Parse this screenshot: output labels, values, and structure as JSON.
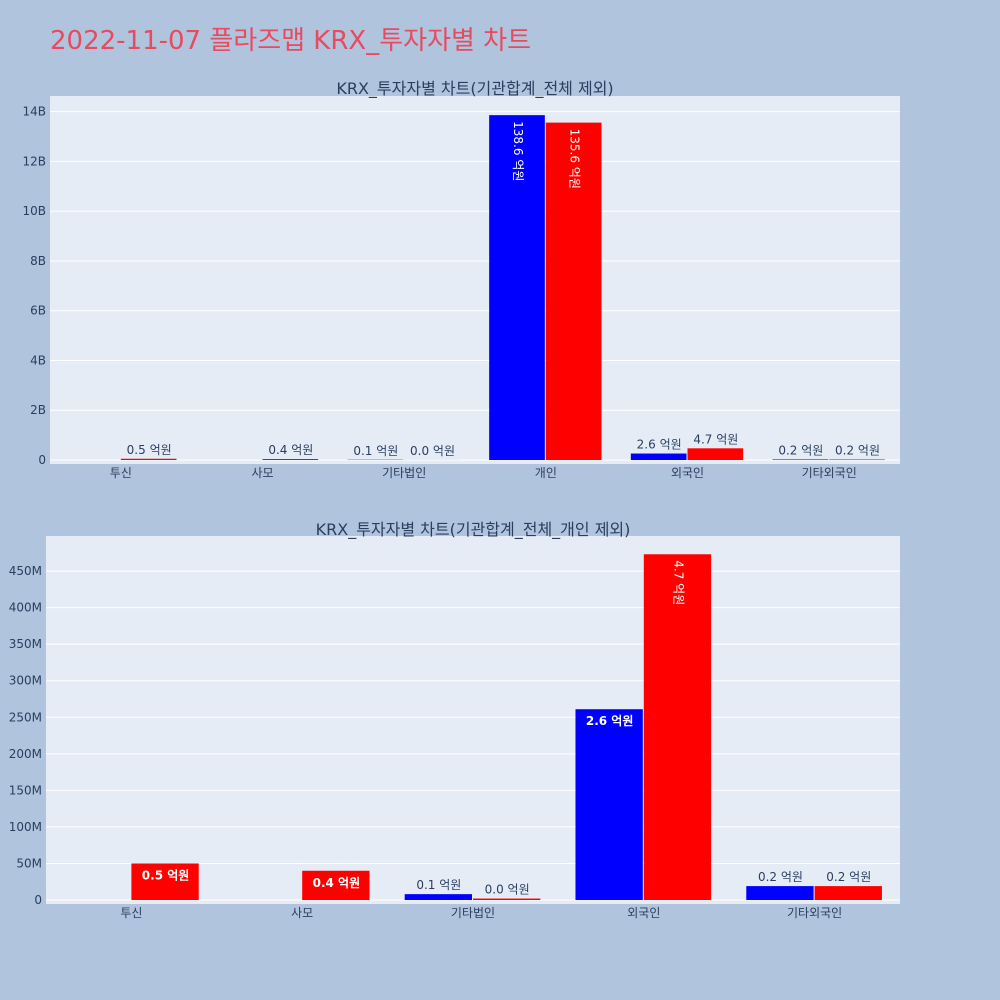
{
  "page": {
    "title": "2022-11-07 플라즈맵 KRX_투자자별 차트"
  },
  "chart_data": [
    {
      "type": "bar",
      "title": "KRX_투자자별 차트(기관합계_전체 제외)",
      "categories": [
        "투신",
        "사모",
        "기타법인",
        "개인",
        "외국인",
        "기타외국인"
      ],
      "series": [
        {
          "color": "#0000ff",
          "values": [
            0,
            0,
            10000000,
            13860000000,
            260000000,
            20000000
          ],
          "labels": [
            "",
            "",
            "0.1 억원",
            "138.6 억원",
            "2.6 억원",
            "0.2 억원"
          ]
        },
        {
          "color": "#ff0000",
          "values": [
            50000000,
            40000000,
            2000000,
            13560000000,
            470000000,
            20000000
          ],
          "labels": [
            "0.5 억원",
            "0.4 억원",
            "0.0 억원",
            "135.6 억원",
            "4.7 억원",
            "0.2 억원"
          ]
        }
      ],
      "yticks": [
        0,
        2000000000,
        4000000000,
        6000000000,
        8000000000,
        10000000000,
        12000000000,
        14000000000
      ],
      "ytick_labels": [
        "0",
        "2B",
        "4B",
        "6B",
        "8B",
        "10B",
        "12B",
        "14B"
      ],
      "ylim": [
        0,
        14630000000
      ],
      "grid": true
    },
    {
      "type": "bar",
      "title": "KRX_투자자별 차트(기관합계_전체_개인 제외)",
      "categories": [
        "투신",
        "사모",
        "기타법인",
        "외국인",
        "기타외국인"
      ],
      "series": [
        {
          "color": "#0000ff",
          "values": [
            0,
            0,
            8000000,
            261000000,
            19000000
          ],
          "labels": [
            "",
            "",
            "0.1 억원",
            "2.6 억원",
            "0.2 억원"
          ]
        },
        {
          "color": "#ff0000",
          "values": [
            50000000,
            40000000,
            2000000,
            473000000,
            19000000
          ],
          "labels": [
            "0.5 억원",
            "0.4 억원",
            "0.0 억원",
            "4.7 억원",
            "0.2 억원"
          ]
        }
      ],
      "yticks": [
        0,
        50000000,
        100000000,
        150000000,
        200000000,
        250000000,
        300000000,
        350000000,
        400000000,
        450000000
      ],
      "ytick_labels": [
        "0",
        "50M",
        "100M",
        "150M",
        "200M",
        "250M",
        "300M",
        "350M",
        "400M",
        "450M"
      ],
      "ylim": [
        0,
        498000000
      ],
      "grid": true
    }
  ]
}
